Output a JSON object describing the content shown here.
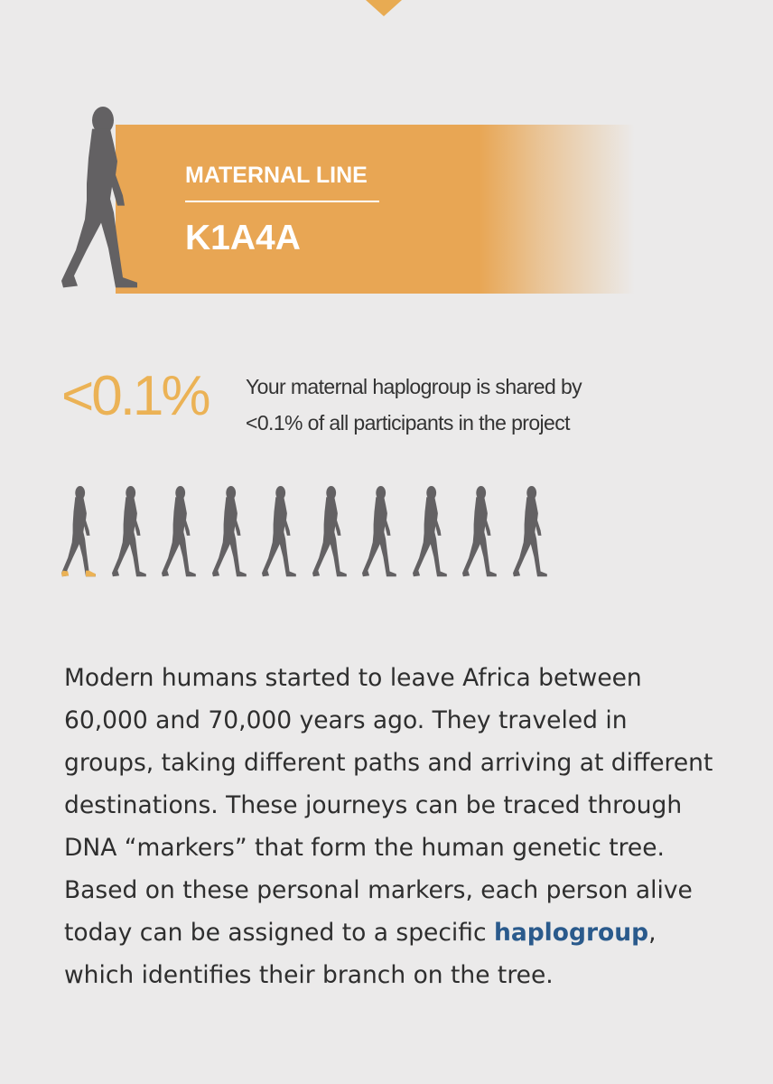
{
  "banner": {
    "label": "MATERNAL LINE",
    "haplogroup": "K1A4A"
  },
  "stat": {
    "percent": "<0.1%",
    "description": "Your maternal haplogroup is shared by <0.1% of all participants in the project",
    "figures_total": 10,
    "figures_highlighted_fraction": 0.001
  },
  "body": {
    "text_before": "Modern humans started to leave Africa between 60,000 and 70,000 years ago. They traveled in groups, taking different paths and arriving at different destinations. These journeys can be traced through DNA “markers” that form the human genetic tree. Based on these personal markers, each person alive today can be assigned to a specific ",
    "link": "haplogroup",
    "text_after": ", which identifies their branch on the tree."
  },
  "colors": {
    "accent": "#e8a654",
    "percent": "#ebb255",
    "silhouette": "#636163",
    "link": "#2a5a8c",
    "background": "#ebeaea"
  }
}
